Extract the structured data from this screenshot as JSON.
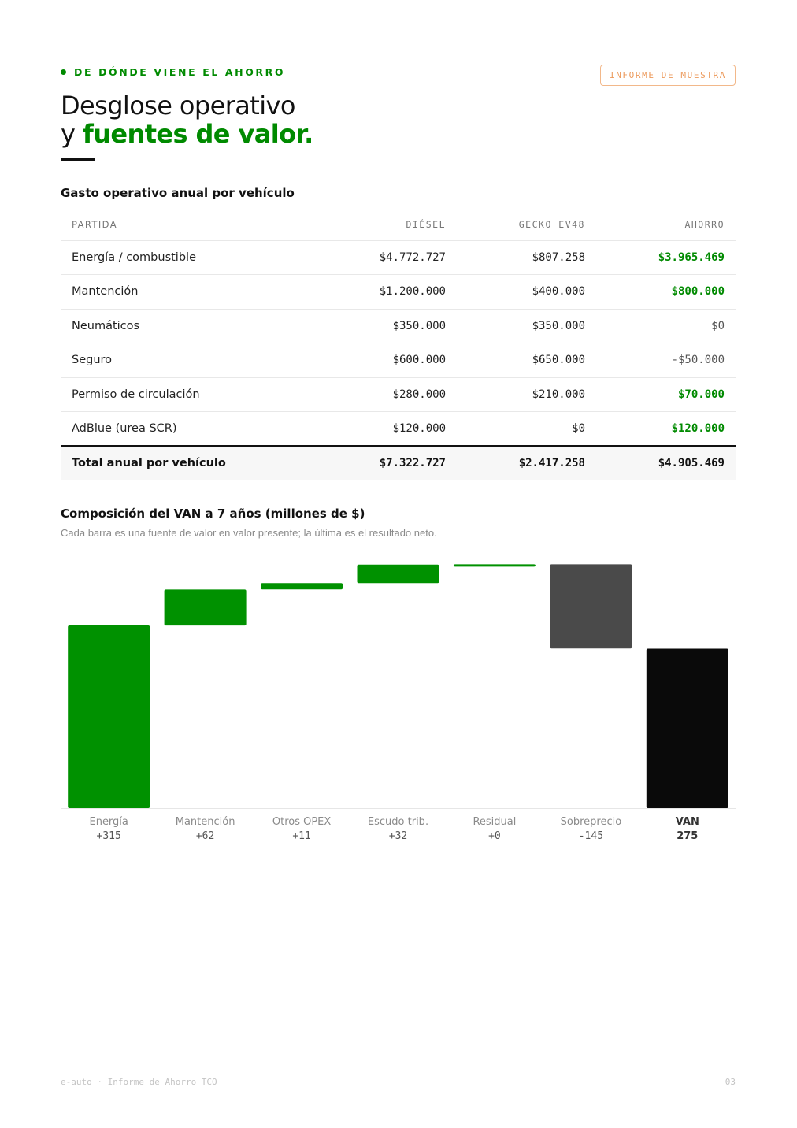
{
  "header": {
    "eyebrow": "DE DÓNDE VIENE EL AHORRO",
    "badge": "INFORME DE MUESTRA",
    "title_line1": "Desglose operativo",
    "title_line2_prefix": "y ",
    "title_line2_accent": "fuentes de valor."
  },
  "opex_table": {
    "title": "Gasto operativo anual por vehículo",
    "columns": [
      "PARTIDA",
      "DIÉSEL",
      "GECKO EV48",
      "AHORRO"
    ],
    "rows": [
      {
        "item": "Energía / combustible",
        "diesel": "$4.772.727",
        "gecko": "$807.258",
        "saving": "$3.965.469",
        "saving_type": "pos"
      },
      {
        "item": "Mantención",
        "diesel": "$1.200.000",
        "gecko": "$400.000",
        "saving": "$800.000",
        "saving_type": "pos"
      },
      {
        "item": "Neumáticos",
        "diesel": "$350.000",
        "gecko": "$350.000",
        "saving": "$0",
        "saving_type": "neutral"
      },
      {
        "item": "Seguro",
        "diesel": "$600.000",
        "gecko": "$650.000",
        "saving": "-$50.000",
        "saving_type": "neutral"
      },
      {
        "item": "Permiso de circulación",
        "diesel": "$280.000",
        "gecko": "$210.000",
        "saving": "$70.000",
        "saving_type": "pos"
      },
      {
        "item": "AdBlue (urea SCR)",
        "diesel": "$120.000",
        "gecko": "$0",
        "saving": "$120.000",
        "saving_type": "pos"
      }
    ],
    "total": {
      "item": "Total anual por vehículo",
      "diesel": "$7.322.727",
      "gecko": "$2.417.258",
      "saving": "$4.905.469"
    }
  },
  "npv_section": {
    "title": "Composición del VAN a 7 años (millones de $)",
    "subtitle": "Cada barra es una fuente de valor en valor presente; la última es el resultado neto."
  },
  "chart_data": {
    "type": "bar",
    "subtype": "waterfall",
    "categories": [
      "Energía",
      "Mantención",
      "Otros OPEX",
      "Escudo trib.",
      "Residual",
      "Sobreprecio",
      "VAN"
    ],
    "value_labels": [
      "+315",
      "+62",
      "+11",
      "+32",
      "+0",
      "-145",
      "275"
    ],
    "values": [
      315,
      62,
      11,
      32,
      0.4,
      -145,
      275
    ],
    "kinds": [
      "positive",
      "positive",
      "positive",
      "positive",
      "positive",
      "negative",
      "total"
    ],
    "ylim": [
      0,
      425
    ],
    "grid": false,
    "colors": {
      "positive": "#009100",
      "negative": "#4a4a4a",
      "total": "#0a0a0a",
      "baseline": "#e6e6e6"
    }
  },
  "footer": {
    "left": "e-auto · Informe de Ahorro TCO",
    "page": "03"
  }
}
